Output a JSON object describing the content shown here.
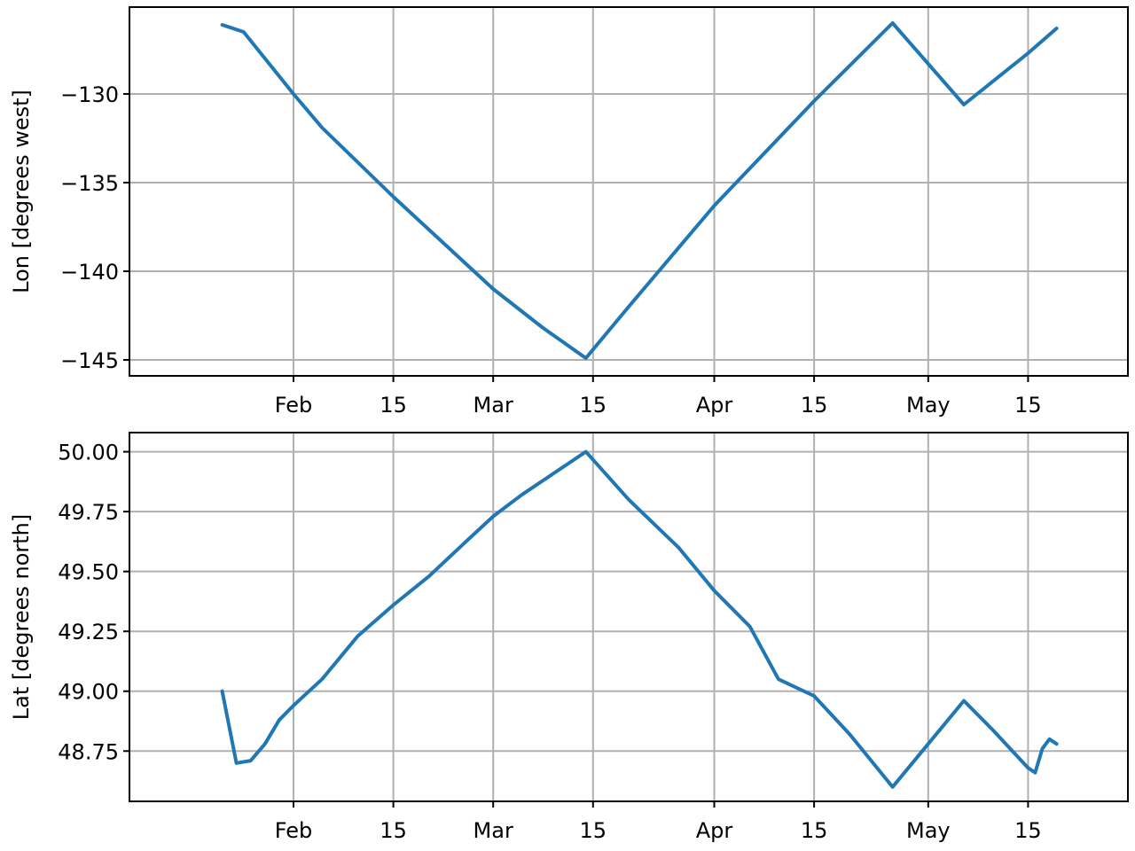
{
  "figure": {
    "background": "#ffffff",
    "line_color": "#1f77b4",
    "grid_color": "#b0b0b0"
  },
  "chart_data": [
    {
      "type": "line",
      "xlabel": "",
      "ylabel": "Lon [degrees west]",
      "x_kind": "date",
      "xlim": [
        "2023-01-09",
        "2023-05-29"
      ],
      "ylim": [
        -145.9,
        -125.1
      ],
      "yticks": [
        -130,
        -135,
        -140,
        -145
      ],
      "ytick_labels": [
        "−130",
        "−135",
        "−140",
        "−145"
      ],
      "xticks": [
        "2023-02-01",
        "2023-02-15",
        "2023-03-01",
        "2023-03-15",
        "2023-04-01",
        "2023-04-15",
        "2023-05-01",
        "2023-05-15"
      ],
      "xtick_labels": [
        "Feb",
        "15",
        "Mar",
        "15",
        "Apr",
        "15",
        "May",
        "15"
      ],
      "grid": true,
      "series": [
        {
          "x": [
            "2023-01-22",
            "2023-01-25",
            "2023-02-01",
            "2023-02-05",
            "2023-02-15",
            "2023-03-01",
            "2023-03-08",
            "2023-03-14",
            "2023-03-20",
            "2023-04-01",
            "2023-04-15",
            "2023-04-26",
            "2023-05-06",
            "2023-05-15",
            "2023-05-19"
          ],
          "y": [
            -126.1,
            -126.5,
            -130.0,
            -131.9,
            -135.8,
            -141.0,
            -143.2,
            -144.9,
            -142.0,
            -136.3,
            -130.4,
            -126.0,
            -130.6,
            -127.7,
            -126.3
          ]
        }
      ]
    },
    {
      "type": "line",
      "xlabel": "",
      "ylabel": "Lat [degrees north]",
      "x_kind": "date",
      "xlim": [
        "2023-01-09",
        "2023-05-29"
      ],
      "ylim": [
        48.54,
        50.08
      ],
      "yticks": [
        50.0,
        49.75,
        49.5,
        49.25,
        49.0,
        48.75
      ],
      "ytick_labels": [
        "50.00",
        "49.75",
        "49.50",
        "49.25",
        "49.00",
        "48.75"
      ],
      "xticks": [
        "2023-02-01",
        "2023-02-15",
        "2023-03-01",
        "2023-03-15",
        "2023-04-01",
        "2023-04-15",
        "2023-05-01",
        "2023-05-15"
      ],
      "xtick_labels": [
        "Feb",
        "15",
        "Mar",
        "15",
        "Apr",
        "15",
        "May",
        "15"
      ],
      "grid": true,
      "series": [
        {
          "x": [
            "2023-01-22",
            "2023-01-24",
            "2023-01-26",
            "2023-01-28",
            "2023-01-30",
            "2023-02-01",
            "2023-02-05",
            "2023-02-10",
            "2023-02-15",
            "2023-02-20",
            "2023-02-25",
            "2023-03-01",
            "2023-03-05",
            "2023-03-09",
            "2023-03-14",
            "2023-03-20",
            "2023-03-27",
            "2023-04-01",
            "2023-04-06",
            "2023-04-10",
            "2023-04-15",
            "2023-04-20",
            "2023-04-26",
            "2023-05-01",
            "2023-05-06",
            "2023-05-10",
            "2023-05-15",
            "2023-05-16",
            "2023-05-17",
            "2023-05-18",
            "2023-05-19"
          ],
          "y": [
            49.0,
            48.7,
            48.71,
            48.78,
            48.88,
            48.94,
            49.05,
            49.23,
            49.36,
            49.48,
            49.62,
            49.73,
            49.82,
            49.9,
            50.0,
            49.8,
            49.6,
            49.42,
            49.27,
            49.05,
            48.98,
            48.82,
            48.6,
            48.78,
            48.96,
            48.84,
            48.68,
            48.66,
            48.76,
            48.8,
            48.78
          ]
        }
      ]
    }
  ]
}
